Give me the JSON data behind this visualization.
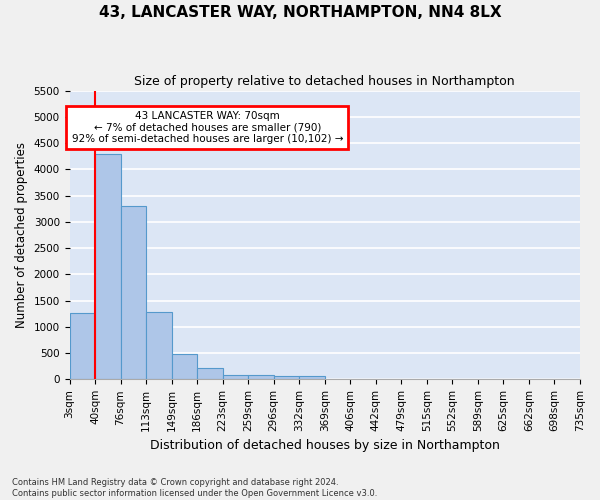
{
  "title": "43, LANCASTER WAY, NORTHAMPTON, NN4 8LX",
  "subtitle": "Size of property relative to detached houses in Northampton",
  "xlabel": "Distribution of detached houses by size in Northampton",
  "ylabel": "Number of detached properties",
  "footer_line1": "Contains HM Land Registry data © Crown copyright and database right 2024.",
  "footer_line2": "Contains public sector information licensed under the Open Government Licence v3.0.",
  "bin_labels": [
    "3sqm",
    "40sqm",
    "76sqm",
    "113sqm",
    "149sqm",
    "186sqm",
    "223sqm",
    "259sqm",
    "296sqm",
    "332sqm",
    "369sqm",
    "406sqm",
    "442sqm",
    "479sqm",
    "515sqm",
    "552sqm",
    "589sqm",
    "625sqm",
    "662sqm",
    "698sqm",
    "735sqm"
  ],
  "bar_values": [
    1270,
    4300,
    3300,
    1280,
    480,
    210,
    90,
    80,
    55,
    55,
    0,
    0,
    0,
    0,
    0,
    0,
    0,
    0,
    0,
    0
  ],
  "bar_color": "#aec6e8",
  "bar_edge_color": "#5599cc",
  "red_line_x": 1,
  "annotation_text_lines": [
    "43 LANCASTER WAY: 70sqm",
    "← 7% of detached houses are smaller (790)",
    "92% of semi-detached houses are larger (10,102) →"
  ],
  "ylim_max": 5500,
  "yticks": [
    0,
    500,
    1000,
    1500,
    2000,
    2500,
    3000,
    3500,
    4000,
    4500,
    5000,
    5500
  ],
  "bg_color": "#dce6f5",
  "fig_bg_color": "#f0f0f0",
  "title_fontsize": 11,
  "subtitle_fontsize": 9,
  "tick_fontsize": 7.5,
  "ylabel_fontsize": 8.5,
  "xlabel_fontsize": 9
}
